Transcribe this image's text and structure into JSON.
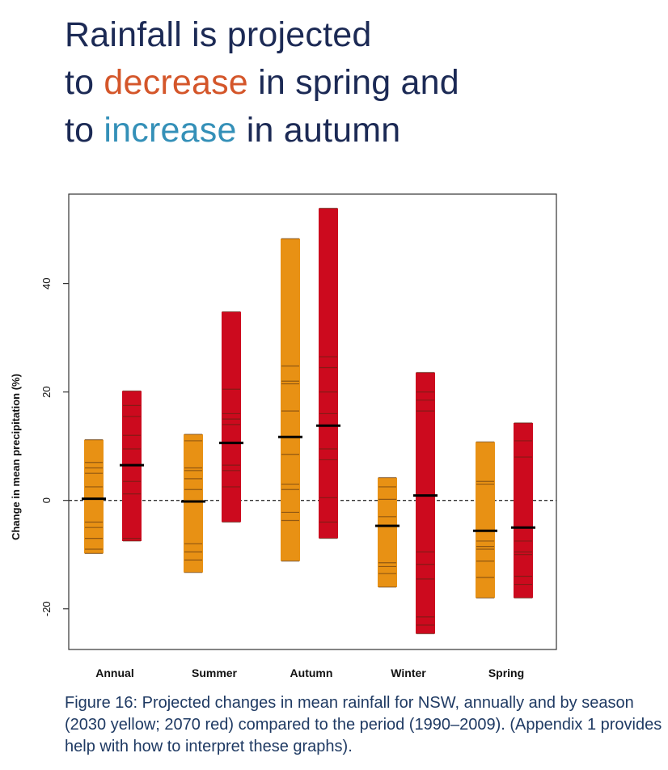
{
  "headline": {
    "line1": "Rainfall is projected",
    "line2_prefix": "to ",
    "line2_emph": "decrease",
    "line2_suffix": " in spring and",
    "line3_prefix": "to ",
    "line3_emph": "increase",
    "line3_suffix": " in autumn"
  },
  "caption": "Figure 16: Projected changes in mean rainfall for NSW, annually and by season (2030 yellow; 2070 red) compared to the period (1990–2009). (Appendix 1 provides help with how to interpret these graphs).",
  "colors": {
    "2030": "#e89114",
    "2070": "#cc0a1e",
    "headline": "#1c2a55",
    "decrease": "#d4562a",
    "increase": "#3490b8",
    "caption": "#1f3a63"
  },
  "chart_data": {
    "type": "bar",
    "ylabel": "Change in mean precipitation (%)",
    "ylim": [
      -27.5,
      56.5
    ],
    "yticks": [
      -20,
      0,
      20,
      40
    ],
    "categories": [
      "Annual",
      "Summer",
      "Autumn",
      "Winter",
      "Spring"
    ],
    "reference_line": 0,
    "series": [
      {
        "key": "2030",
        "ranges": [
          {
            "min": -9.8,
            "max": 11.2,
            "median": 0.3,
            "models": [
              -9.8,
              -9.0,
              -7.0,
              -5.0,
              -4.0,
              2.5,
              5.0,
              6.0,
              7.0,
              11.2
            ]
          },
          {
            "min": -13.3,
            "max": 12.2,
            "median": -0.2,
            "models": [
              -13.3,
              -11.0,
              -9.5,
              -8.0,
              2.0,
              4.0,
              5.5,
              6.0,
              11.0,
              12.2
            ]
          },
          {
            "min": -11.2,
            "max": 48.3,
            "median": 11.7,
            "models": [
              -11.2,
              -3.7,
              -2.2,
              2.0,
              3.0,
              8.5,
              16.5,
              21.5,
              22.0,
              24.8,
              48.3
            ]
          },
          {
            "min": -16.0,
            "max": 4.2,
            "median": -4.7,
            "models": [
              -16.0,
              -13.5,
              -12.2,
              -11.5,
              -3.0,
              0.2,
              2.5,
              4.2
            ]
          },
          {
            "min": -18.0,
            "max": 10.8,
            "median": -5.6,
            "models": [
              -18.0,
              -14.2,
              -11.2,
              -9.0,
              -8.5,
              -7.5,
              3.0,
              3.5,
              10.8
            ]
          }
        ]
      },
      {
        "key": "2070",
        "ranges": [
          {
            "min": -7.5,
            "max": 20.2,
            "median": 6.5,
            "models": [
              -7.5,
              -7.0,
              1.2,
              3.5,
              9.5,
              12.0,
              15.5,
              17.5,
              20.2
            ]
          },
          {
            "min": -4.0,
            "max": 34.8,
            "median": 10.6,
            "models": [
              -4.0,
              2.5,
              5.5,
              6.5,
              14.0,
              15.0,
              16.0,
              20.5,
              34.8
            ]
          },
          {
            "min": -7.0,
            "max": 53.9,
            "median": 13.8,
            "models": [
              -7.0,
              -4.0,
              0.5,
              7.5,
              9.5,
              16.0,
              20.0,
              24.5,
              26.5,
              53.9
            ]
          },
          {
            "min": -24.6,
            "max": 23.6,
            "median": 0.9,
            "models": [
              -24.6,
              -23.0,
              -21.5,
              -14.5,
              -11.8,
              -9.5,
              16.5,
              18.5,
              20.0,
              23.6
            ]
          },
          {
            "min": -18.0,
            "max": 14.3,
            "median": -5.0,
            "models": [
              -18.0,
              -15.5,
              -14.0,
              -10.0,
              -9.5,
              -7.5,
              8.0,
              11.0,
              14.3
            ]
          }
        ]
      }
    ]
  }
}
